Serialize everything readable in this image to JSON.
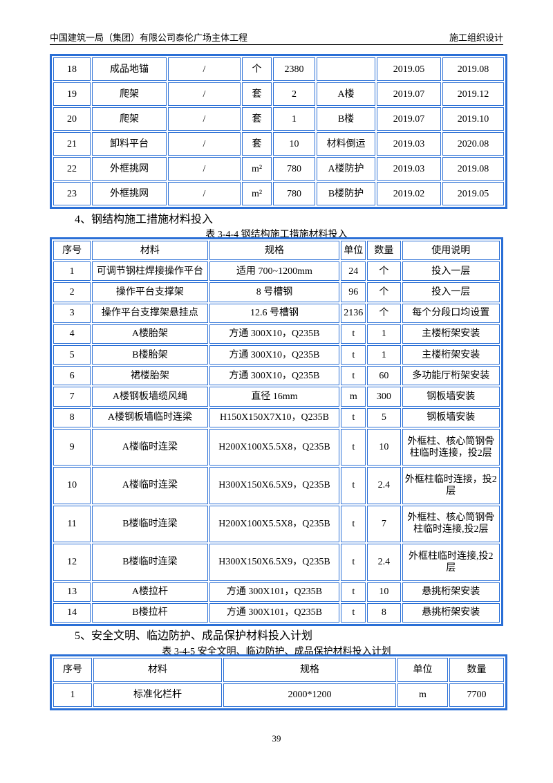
{
  "header": {
    "left": "中国建筑一局（集团）有限公司泰伦广场主体工程",
    "right": "施工组织设计"
  },
  "table1": {
    "rows": [
      [
        "18",
        "成品地锚",
        "/",
        "个",
        "2380",
        null,
        "2019.05",
        "2019.08"
      ],
      [
        "19",
        "爬架",
        "/",
        "套",
        "2",
        "A楼",
        "2019.07",
        "2019.12"
      ],
      [
        "20",
        "爬架",
        "/",
        "套",
        "1",
        "B楼",
        "2019.07",
        "2019.10"
      ],
      [
        "21",
        "卸料平台",
        "/",
        "套",
        "10",
        "材料倒运",
        "2019.03",
        "2020.08"
      ],
      [
        "22",
        "外框挑网",
        "/",
        "m²",
        "780",
        "A楼防护",
        "2019.03",
        "2019.08"
      ],
      [
        "23",
        "外框挑网",
        "/",
        "m²",
        "780",
        "B楼防护",
        "2019.02",
        "2019.05"
      ]
    ]
  },
  "section4": {
    "heading": "4、钢结构施工措施材料投入",
    "caption": "表 3-4-4  钢结构施工措施材料投入",
    "table": {
      "header": [
        "序号",
        "材料",
        "规格",
        "单位",
        "数量",
        "使用说明"
      ],
      "rows": [
        [
          "1",
          "可调节钢柱焊接操作平台",
          "适用 700~1200mm",
          "24",
          "个",
          "投入一层"
        ],
        [
          "2",
          "操作平台支撑架",
          "8 号槽钢",
          "96",
          "个",
          "投入一层"
        ],
        [
          "3",
          "操作平台支撑架悬挂点",
          "12.6 号槽钢",
          "2136",
          "个",
          "每个分段口均设置"
        ],
        [
          "4",
          "A楼胎架",
          "方通 300X10，Q235B",
          "t",
          "1",
          "主楼桁架安装"
        ],
        [
          "5",
          "B楼胎架",
          "方通 300X10，Q235B",
          "t",
          "1",
          "主楼桁架安装"
        ],
        [
          "6",
          "裙楼胎架",
          "方通 300X10，Q235B",
          "t",
          "60",
          "多功能厅桁架安装"
        ],
        [
          "7",
          "A楼钢板墙缆风绳",
          "直径 16mm",
          "m",
          "300",
          "钢板墙安装"
        ],
        [
          "8",
          "A楼钢板墙临时连梁",
          "H150X150X7X10，Q235B",
          "t",
          "5",
          "钢板墙安装"
        ],
        [
          "9",
          "A楼临时连梁",
          "H200X100X5.5X8，Q235B",
          "t",
          "10",
          "外框柱、核心筒钢骨柱临时连接，投2层"
        ],
        [
          "10",
          "A楼临时连梁",
          "H300X150X6.5X9，Q235B",
          "t",
          "2.4",
          "外框柱临时连接，投2层"
        ],
        [
          "11",
          "B楼临时连梁",
          "H200X100X5.5X8，Q235B",
          "t",
          "7",
          "外框柱、核心筒钢骨柱临时连接,投2层"
        ],
        [
          "12",
          "B楼临时连梁",
          "H300X150X6.5X9，Q235B",
          "t",
          "2.4",
          "外框柱临时连接,投2层"
        ],
        [
          "13",
          "A楼拉杆",
          "方通 300X101，Q235B",
          "t",
          "10",
          "悬挑桁架安装"
        ],
        [
          "14",
          "B楼拉杆",
          "方通 300X101，Q235B",
          "t",
          "8",
          "悬挑桁架安装"
        ]
      ]
    }
  },
  "section5": {
    "heading": "5、安全文明、临边防护、成品保护材料投入计划",
    "caption": "表 3-4-5  安全文明、临边防护、成品保护材料投入计划",
    "table": {
      "header": [
        "序号",
        "材料",
        "规格",
        "单位",
        "数量"
      ],
      "rows": [
        [
          "1",
          "标准化栏杆",
          "2000*1200",
          "m",
          "7700"
        ]
      ]
    }
  },
  "page_number": "39"
}
